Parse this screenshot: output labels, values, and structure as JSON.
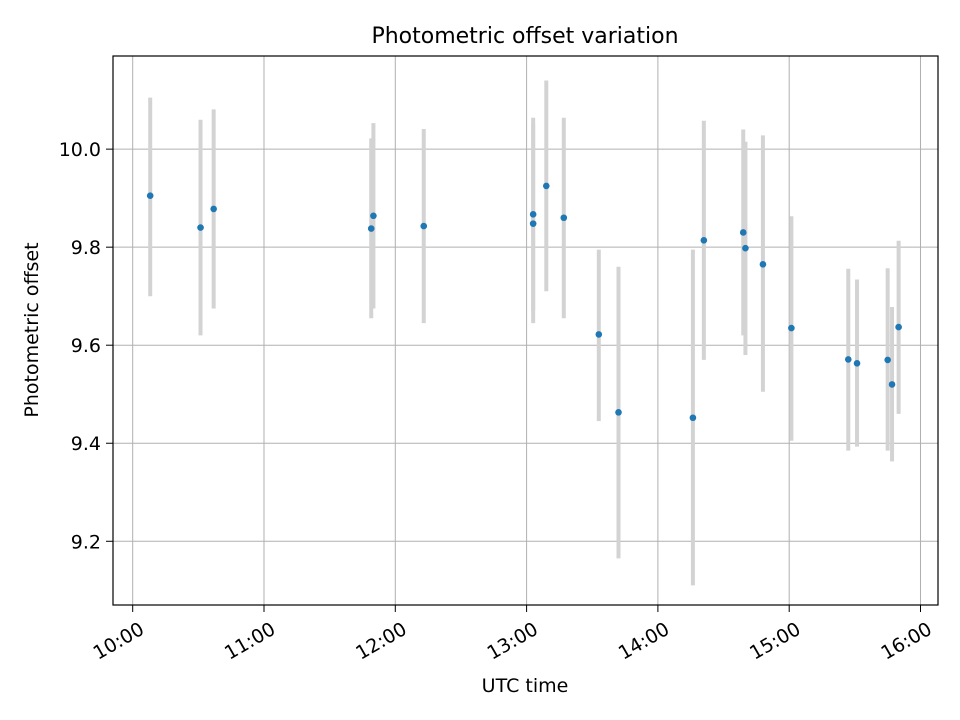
{
  "chart_data": {
    "type": "scatter",
    "title": "Photometric offset variation",
    "xlabel": "UTC time",
    "ylabel": "Photometric offset",
    "grid": true,
    "legend": "none",
    "xlim": [
      "09:51",
      "16:08"
    ],
    "ylim": [
      9.07,
      10.19
    ],
    "xticks": [
      "10:00",
      "11:00",
      "12:00",
      "13:00",
      "14:00",
      "15:00",
      "16:00"
    ],
    "yticks": [
      "9.2",
      "9.4",
      "9.6",
      "9.8",
      "10.0"
    ],
    "colors": {
      "point": "#1f77b4",
      "errorbar": "#d3d3d3",
      "grid": "#b0b0b0"
    },
    "series": [
      {
        "points": [
          {
            "x": "10:08",
            "y": 9.905,
            "ylow": 9.7,
            "yhigh": 10.105
          },
          {
            "x": "10:31",
            "y": 9.84,
            "ylow": 9.62,
            "yhigh": 10.06
          },
          {
            "x": "10:37",
            "y": 9.878,
            "ylow": 9.675,
            "yhigh": 10.081
          },
          {
            "x": "11:49",
            "y": 9.838,
            "ylow": 9.655,
            "yhigh": 10.022
          },
          {
            "x": "11:50",
            "y": 9.864,
            "ylow": 9.675,
            "yhigh": 10.053
          },
          {
            "x": "12:13",
            "y": 9.843,
            "ylow": 9.645,
            "yhigh": 10.041
          },
          {
            "x": "13:03",
            "y": 9.848,
            "ylow": 9.645,
            "yhigh": 10.052
          },
          {
            "x": "13:03",
            "y": 9.867,
            "ylow": 9.67,
            "yhigh": 10.064
          },
          {
            "x": "13:09",
            "y": 9.925,
            "ylow": 9.71,
            "yhigh": 10.14
          },
          {
            "x": "13:17",
            "y": 9.86,
            "ylow": 9.655,
            "yhigh": 10.064
          },
          {
            "x": "13:33",
            "y": 9.622,
            "ylow": 9.445,
            "yhigh": 9.795
          },
          {
            "x": "13:42",
            "y": 9.463,
            "ylow": 9.165,
            "yhigh": 9.76
          },
          {
            "x": "14:16",
            "y": 9.452,
            "ylow": 9.11,
            "yhigh": 9.795
          },
          {
            "x": "14:21",
            "y": 9.814,
            "ylow": 9.57,
            "yhigh": 10.058
          },
          {
            "x": "14:39",
            "y": 9.83,
            "ylow": 9.62,
            "yhigh": 10.04
          },
          {
            "x": "14:40",
            "y": 9.798,
            "ylow": 9.58,
            "yhigh": 10.015
          },
          {
            "x": "14:48",
            "y": 9.765,
            "ylow": 9.505,
            "yhigh": 10.028
          },
          {
            "x": "15:01",
            "y": 9.635,
            "ylow": 9.405,
            "yhigh": 9.863
          },
          {
            "x": "15:27",
            "y": 9.571,
            "ylow": 9.385,
            "yhigh": 9.756
          },
          {
            "x": "15:31",
            "y": 9.563,
            "ylow": 9.393,
            "yhigh": 9.734
          },
          {
            "x": "15:45",
            "y": 9.57,
            "ylow": 9.385,
            "yhigh": 9.757
          },
          {
            "x": "15:47",
            "y": 9.52,
            "ylow": 9.363,
            "yhigh": 9.678
          },
          {
            "x": "15:50",
            "y": 9.637,
            "ylow": 9.46,
            "yhigh": 9.813
          }
        ]
      }
    ]
  }
}
